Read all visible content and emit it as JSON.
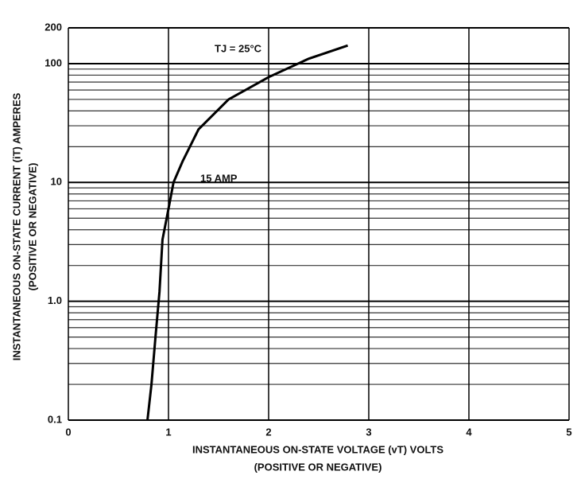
{
  "chart_data": {
    "type": "line",
    "annotations": [
      "TJ = 25°C",
      "15 AMP"
    ],
    "xlabel": "INSTANTANEOUS ON-STATE VOLTAGE (vT) VOLTS",
    "xlabel2": "(POSITIVE OR NEGATIVE)",
    "ylabel": "INSTANTANEOUS ON-STATE CURRENT (iT) AMPERES",
    "ylabel2": "(POSITIVE OR NEGATIVE)",
    "x": [
      0.79,
      0.83,
      0.87,
      0.91,
      0.94,
      1.0,
      1.05,
      1.14,
      1.3,
      1.6,
      2.0,
      2.4,
      2.79
    ],
    "series": [
      {
        "color": "#000000",
        "values": [
          0.1,
          0.2,
          0.5,
          1.2,
          3.3,
          6,
          10,
          15,
          28,
          50,
          77,
          110,
          142
        ]
      }
    ],
    "xlim": [
      0,
      5
    ],
    "xticks": [
      0,
      1,
      2,
      3,
      4,
      5
    ],
    "ylim": [
      0.1,
      200
    ],
    "ylog": true,
    "yticks": [
      0.1,
      {
        "value": 1,
        "label": "1.0"
      },
      10,
      100,
      200
    ],
    "grid": true
  }
}
